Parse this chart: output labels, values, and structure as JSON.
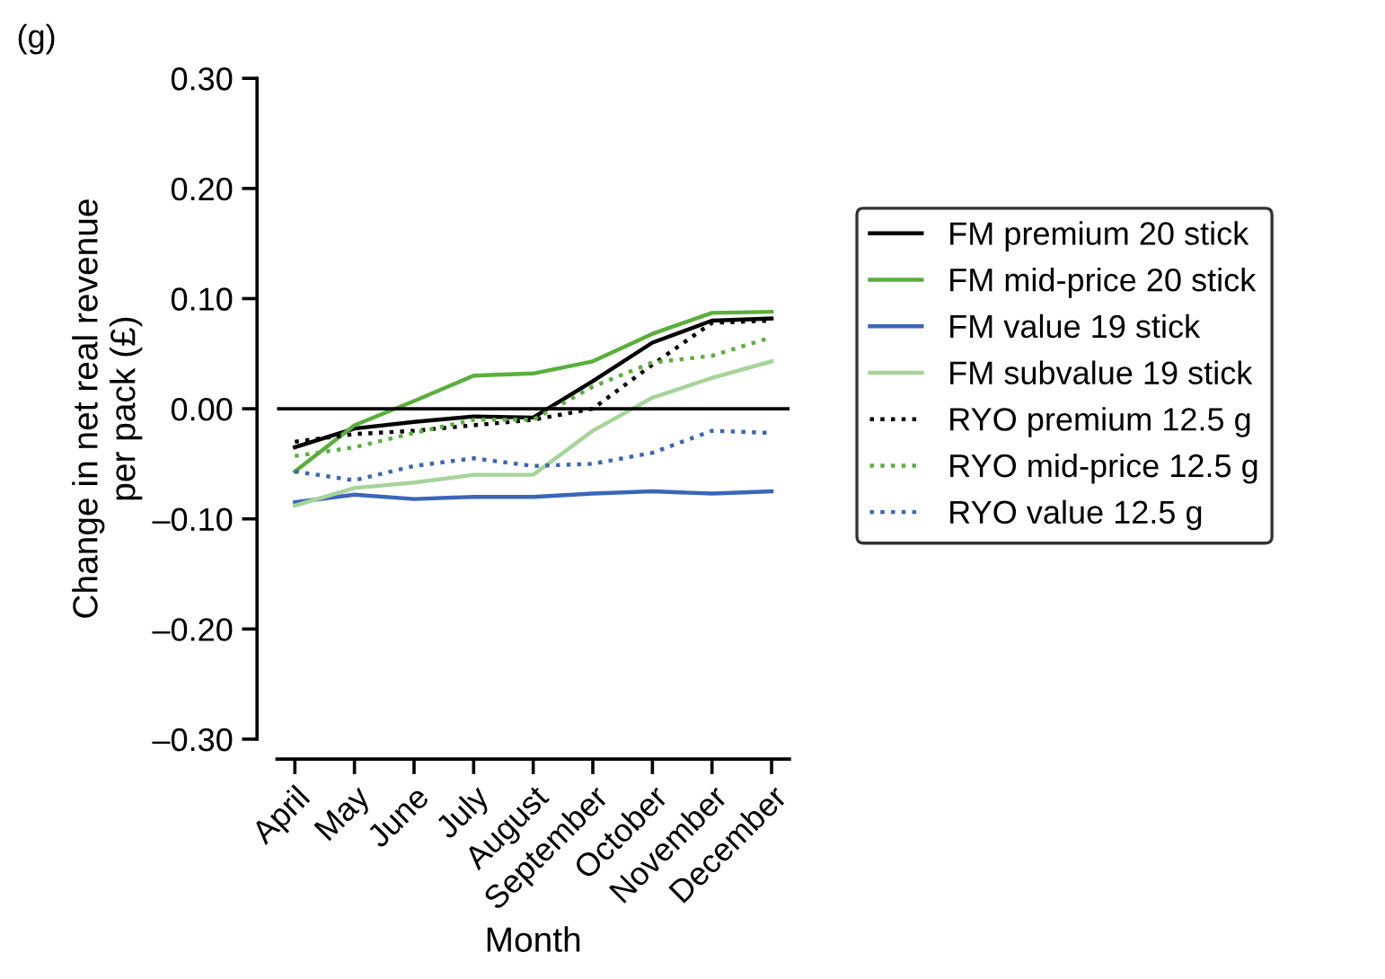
{
  "chart_data": {
    "type": "line",
    "xlabel": "Month",
    "ylabel": "Change in net real revenue\nper pack (£)",
    "annotations": [
      "(g)"
    ],
    "categories": [
      "April",
      "May",
      "June",
      "July",
      "August",
      "September",
      "October",
      "November",
      "December"
    ],
    "ylim": [
      -0.3,
      0.3
    ],
    "yticks": [
      {
        "value": -0.3,
        "label": "–0.30"
      },
      {
        "value": -0.2,
        "label": "–0.20"
      },
      {
        "value": -0.1,
        "label": "–0.10"
      },
      {
        "value": 0,
        "label": "0.00"
      },
      {
        "value": 0.1,
        "label": "0.10"
      },
      {
        "value": 0.2,
        "label": "0.20"
      },
      {
        "value": 0.3,
        "label": "0.30"
      }
    ],
    "ref_lines": [
      {
        "axis": "y",
        "value": 0,
        "color": "#000000"
      }
    ],
    "legend": "right",
    "grid": false,
    "series": [
      {
        "name": "FM premium 20 stick",
        "color": "#000000",
        "line_style": "solid",
        "values": [
          -0.035,
          -0.018,
          -0.012,
          -0.007,
          -0.008,
          0.025,
          0.06,
          0.08,
          0.082
        ]
      },
      {
        "name": "FM mid-price 20 stick",
        "color": "#5aaf3c",
        "line_style": "solid",
        "values": [
          -0.057,
          -0.015,
          0.007,
          0.03,
          0.032,
          0.043,
          0.068,
          0.087,
          0.088
        ]
      },
      {
        "name": "FM value 19 stick",
        "color": "#3a66b8",
        "line_style": "solid",
        "values": [
          -0.085,
          -0.078,
          -0.082,
          -0.08,
          -0.08,
          -0.077,
          -0.075,
          -0.077,
          -0.075
        ]
      },
      {
        "name": "FM subvalue 19 stick",
        "color": "#a6d49a",
        "line_style": "solid",
        "values": [
          -0.088,
          -0.072,
          -0.067,
          -0.06,
          -0.06,
          -0.02,
          0.01,
          0.028,
          0.043
        ]
      },
      {
        "name": "RYO premium 12.5 g",
        "color": "#000000",
        "line_style": "dotted",
        "values": [
          -0.03,
          -0.023,
          -0.02,
          -0.015,
          -0.01,
          0.0,
          0.04,
          0.078,
          0.08
        ]
      },
      {
        "name": "RYO mid-price 12.5 g",
        "color": "#5aaf3c",
        "line_style": "dotted",
        "values": [
          -0.043,
          -0.035,
          -0.022,
          -0.01,
          -0.01,
          0.02,
          0.042,
          0.048,
          0.065
        ]
      },
      {
        "name": "RYO value 12.5 g",
        "color": "#3a66b8",
        "line_style": "dotted",
        "values": [
          -0.057,
          -0.065,
          -0.052,
          -0.045,
          -0.052,
          -0.05,
          -0.04,
          -0.02,
          -0.022
        ]
      }
    ]
  }
}
